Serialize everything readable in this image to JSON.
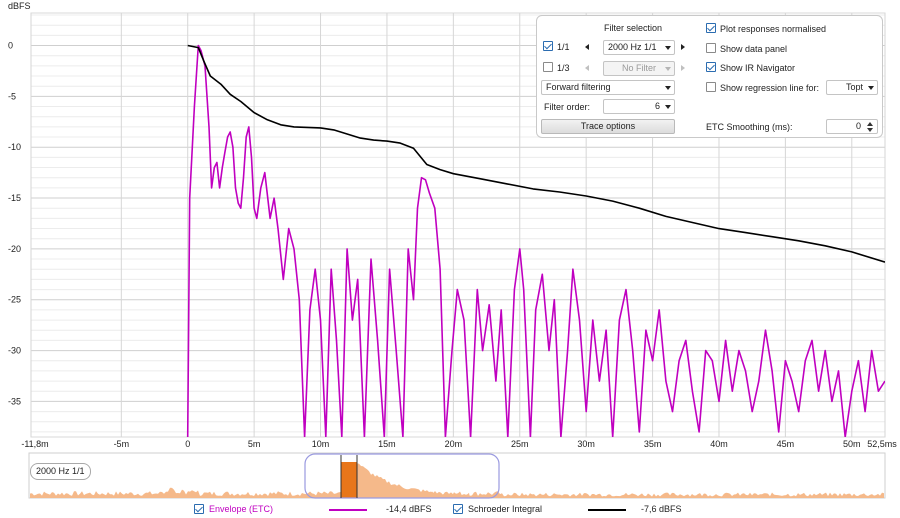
{
  "chart_data": {
    "type": "line",
    "ylabel": "dBFS",
    "xlabel": "",
    "x_unit_label": "ms",
    "xlim": [
      -11.8,
      52.5
    ],
    "ylim": [
      -38.5,
      3.2
    ],
    "y_ticks": [
      0,
      -5,
      -10,
      -15,
      -20,
      -25,
      -30,
      -35
    ],
    "y_tick_labels": [
      "0",
      "-5",
      "-10",
      "-15",
      "-20",
      "-25",
      "-30",
      "-35"
    ],
    "x_ticks": [
      -11.8,
      -5,
      0,
      5,
      10,
      15,
      20,
      25,
      30,
      35,
      40,
      45,
      50,
      52.5
    ],
    "x_tick_labels": [
      "-11,8m",
      "-5m",
      "0",
      "5m",
      "10m",
      "15m",
      "20m",
      "25m",
      "30m",
      "35m",
      "40m",
      "45m",
      "50m",
      "52,5ms"
    ],
    "grid": true,
    "series": [
      {
        "name": "Schroeder Integral",
        "color": "#000000",
        "points": [
          [
            0,
            0
          ],
          [
            0.8,
            -0.2
          ],
          [
            1.2,
            -1.5
          ],
          [
            1.7,
            -3.0
          ],
          [
            2.5,
            -3.8
          ],
          [
            3.2,
            -4.8
          ],
          [
            4.0,
            -5.5
          ],
          [
            5.0,
            -6.6
          ],
          [
            6.0,
            -7.3
          ],
          [
            7.0,
            -7.8
          ],
          [
            8.0,
            -8.0
          ],
          [
            10.0,
            -8.1
          ],
          [
            11.0,
            -8.3
          ],
          [
            12.0,
            -8.7
          ],
          [
            13.0,
            -9.1
          ],
          [
            14.0,
            -9.3
          ],
          [
            15.0,
            -9.4
          ],
          [
            16.0,
            -9.6
          ],
          [
            17.0,
            -10.1
          ],
          [
            18.0,
            -11.7
          ],
          [
            19.0,
            -12.2
          ],
          [
            20.0,
            -12.6
          ],
          [
            22.0,
            -13.1
          ],
          [
            24.0,
            -13.6
          ],
          [
            26.0,
            -14.1
          ],
          [
            28.0,
            -14.4
          ],
          [
            30.0,
            -14.8
          ],
          [
            32.0,
            -15.3
          ],
          [
            34.0,
            -16.0
          ],
          [
            36.0,
            -16.8
          ],
          [
            38.0,
            -17.4
          ],
          [
            40.0,
            -18.0
          ],
          [
            42.0,
            -18.4
          ],
          [
            44.0,
            -18.8
          ],
          [
            46.0,
            -19.2
          ],
          [
            48.0,
            -19.7
          ],
          [
            50.0,
            -20.3
          ],
          [
            52.5,
            -21.3
          ]
        ]
      },
      {
        "name": "Envelope (ETC)",
        "color": "#c000c0",
        "points": [
          [
            0,
            -38.5
          ],
          [
            0.15,
            -15
          ],
          [
            0.5,
            -6
          ],
          [
            0.8,
            0
          ],
          [
            1.0,
            -0.5
          ],
          [
            1.3,
            -2
          ],
          [
            1.6,
            -8
          ],
          [
            1.8,
            -14
          ],
          [
            2.0,
            -12
          ],
          [
            2.2,
            -11.5
          ],
          [
            2.4,
            -14
          ],
          [
            2.6,
            -12
          ],
          [
            2.8,
            -10.5
          ],
          [
            3.0,
            -9
          ],
          [
            3.2,
            -8.5
          ],
          [
            3.4,
            -10
          ],
          [
            3.6,
            -14
          ],
          [
            3.8,
            -15.5
          ],
          [
            4.0,
            -16
          ],
          [
            4.2,
            -13
          ],
          [
            4.4,
            -9
          ],
          [
            4.6,
            -8
          ],
          [
            4.8,
            -11
          ],
          [
            5.0,
            -16
          ],
          [
            5.2,
            -17
          ],
          [
            5.5,
            -14
          ],
          [
            5.8,
            -12.5
          ],
          [
            6.2,
            -17
          ],
          [
            6.5,
            -15
          ],
          [
            6.8,
            -18
          ],
          [
            7.2,
            -23
          ],
          [
            7.6,
            -18
          ],
          [
            8.0,
            -20
          ],
          [
            8.4,
            -25
          ],
          [
            8.8,
            -38.5
          ],
          [
            9.2,
            -26
          ],
          [
            9.6,
            -22
          ],
          [
            10.0,
            -27
          ],
          [
            10.4,
            -38.5
          ],
          [
            10.8,
            -22
          ],
          [
            11.2,
            -29
          ],
          [
            11.6,
            -38.5
          ],
          [
            12.0,
            -20
          ],
          [
            12.4,
            -27
          ],
          [
            12.8,
            -23
          ],
          [
            13.3,
            -38.5
          ],
          [
            13.8,
            -21
          ],
          [
            14.3,
            -29
          ],
          [
            14.8,
            -38.5
          ],
          [
            15.2,
            -22
          ],
          [
            15.7,
            -30
          ],
          [
            16.2,
            -38.5
          ],
          [
            16.6,
            -20
          ],
          [
            17.0,
            -25
          ],
          [
            17.3,
            -16
          ],
          [
            17.6,
            -13
          ],
          [
            17.9,
            -13.2
          ],
          [
            18.2,
            -14.5
          ],
          [
            18.6,
            -16
          ],
          [
            19.0,
            -22
          ],
          [
            19.4,
            -38.5
          ],
          [
            19.9,
            -30
          ],
          [
            20.3,
            -24
          ],
          [
            20.8,
            -27
          ],
          [
            21.3,
            -38.5
          ],
          [
            21.8,
            -24
          ],
          [
            22.2,
            -30
          ],
          [
            22.7,
            -25.5
          ],
          [
            23.2,
            -33
          ],
          [
            23.6,
            -26
          ],
          [
            24.1,
            -38.5
          ],
          [
            24.6,
            -24
          ],
          [
            25.0,
            -20
          ],
          [
            25.3,
            -24
          ],
          [
            25.8,
            -38.5
          ],
          [
            26.2,
            -26
          ],
          [
            26.7,
            -22.5
          ],
          [
            27.2,
            -30
          ],
          [
            27.6,
            -25
          ],
          [
            28.1,
            -38.5
          ],
          [
            28.6,
            -30
          ],
          [
            29.0,
            -22
          ],
          [
            29.5,
            -27
          ],
          [
            30.0,
            -36
          ],
          [
            30.5,
            -27
          ],
          [
            31.0,
            -33
          ],
          [
            31.5,
            -28
          ],
          [
            32.0,
            -38.5
          ],
          [
            32.5,
            -27
          ],
          [
            33.0,
            -24
          ],
          [
            33.5,
            -30
          ],
          [
            34.0,
            -38
          ],
          [
            34.5,
            -28
          ],
          [
            35.0,
            -31
          ],
          [
            35.5,
            -26
          ],
          [
            36.0,
            -33
          ],
          [
            36.5,
            -36
          ],
          [
            37.0,
            -31
          ],
          [
            37.5,
            -29
          ],
          [
            38.0,
            -34
          ],
          [
            38.5,
            -38
          ],
          [
            39.0,
            -30
          ],
          [
            39.5,
            -31
          ],
          [
            40.0,
            -35
          ],
          [
            40.5,
            -29
          ],
          [
            41.0,
            -34
          ],
          [
            41.5,
            -30
          ],
          [
            42.0,
            -32
          ],
          [
            42.5,
            -36
          ],
          [
            43.0,
            -33
          ],
          [
            43.5,
            -28
          ],
          [
            44.0,
            -32
          ],
          [
            44.5,
            -38
          ],
          [
            45.0,
            -31
          ],
          [
            45.5,
            -33
          ],
          [
            46.0,
            -36
          ],
          [
            46.5,
            -31
          ],
          [
            47.0,
            -29
          ],
          [
            47.5,
            -34
          ],
          [
            48.0,
            -30
          ],
          [
            48.5,
            -35
          ],
          [
            49.0,
            -32
          ],
          [
            49.5,
            -38.5
          ],
          [
            50.0,
            -34
          ],
          [
            50.5,
            -31
          ],
          [
            51.0,
            -36
          ],
          [
            51.5,
            -30
          ],
          [
            52.0,
            -34
          ],
          [
            52.5,
            -33
          ]
        ]
      }
    ]
  },
  "panel": {
    "filter_selection_label": "Filter selection",
    "band_1_1_label": "1/1",
    "band_1_1_checked": true,
    "band_1_1_value": "2000 Hz 1/1",
    "band_1_3_label": "1/3",
    "band_1_3_checked": false,
    "band_1_3_value": "No Filter",
    "filtering_mode": "Forward filtering",
    "filter_order_label": "Filter order:",
    "filter_order_value": "6",
    "trace_options_label": "Trace options",
    "plot_normalised_label": "Plot responses normalised",
    "plot_normalised_checked": true,
    "show_data_panel_label": "Show data panel",
    "show_data_panel_checked": false,
    "show_ir_navigator_label": "Show IR Navigator",
    "show_ir_navigator_checked": true,
    "show_regression_label": "Show regression line for:",
    "show_regression_checked": false,
    "regression_value": "Topt",
    "etc_smoothing_label": "ETC Smoothing (ms):",
    "etc_smoothing_value": "0"
  },
  "navigator": {
    "label": "2000 Hz 1/1",
    "fill_color": "#f5b98a",
    "highlight_color": "#e8761a",
    "window_color": "#9a9ae0"
  },
  "legend": {
    "envelope_label": "Envelope (ETC)",
    "envelope_value": "-14,4 dBFS",
    "envelope_color": "#c000c0",
    "envelope_checked": true,
    "schroeder_label": "Schroeder Integral",
    "schroeder_value": "-7,6 dBFS",
    "schroeder_color": "#000000",
    "schroeder_checked": true
  }
}
